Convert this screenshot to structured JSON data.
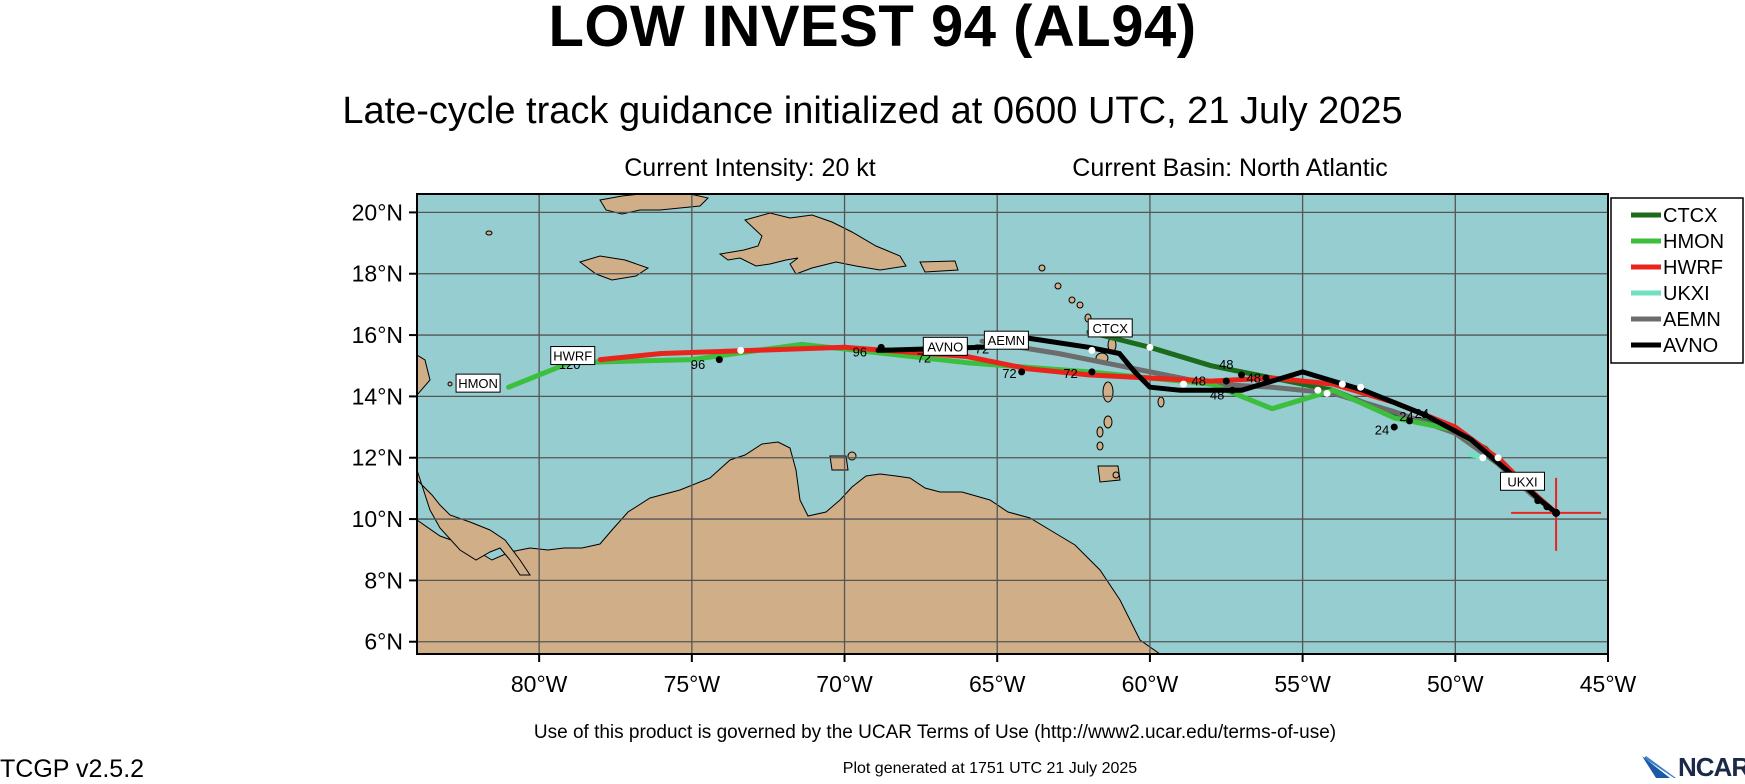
{
  "title": "LOW INVEST 94 (AL94)",
  "subtitle": "Late-cycle track guidance initialized at 0600 UTC, 21 July 2025",
  "current_intensity": "Current Intensity: 20 kt",
  "current_basin": "Current Basin: North Atlantic",
  "terms": "Use of this product is governed by the UCAR Terms of Use (http://www2.ucar.edu/terms-of-use)",
  "version": "TCGP v2.5.2",
  "generated": "Plot generated at 1751 UTC   21 July 2025",
  "logo_text": "NCAR",
  "colors": {
    "ocean": "#96cdd0",
    "land": "#cfae88",
    "CTCX": "#1c6b1c",
    "HMON": "#3cbf3c",
    "HWRF": "#e8241c",
    "UKXI": "#6fe0c0",
    "AEMN": "#6c6c6c",
    "AVNO": "#000000"
  },
  "map": {
    "lon_range": [
      -84,
      -45
    ],
    "lat_range": [
      5.6,
      20.6
    ],
    "lon_ticks": [
      "80°W",
      "75°W",
      "70°W",
      "65°W",
      "60°W",
      "55°W",
      "50°W",
      "45°W"
    ],
    "lat_ticks": [
      "20°N",
      "18°N",
      "16°N",
      "14°N",
      "12°N",
      "10°N",
      "8°N",
      "6°N"
    ],
    "current_position": {
      "lon": -46.7,
      "lat": 10.2
    }
  },
  "legend": [
    "CTCX",
    "HMON",
    "HWRF",
    "UKXI",
    "AEMN",
    "AVNO"
  ],
  "tracks": [
    {
      "model": "CTCX",
      "points": [
        [
          -46.7,
          10.2
        ],
        [
          -47.3,
          10.7
        ],
        [
          -48,
          11.2
        ],
        [
          -49,
          12.3
        ],
        [
          -50,
          12.8
        ],
        [
          -51,
          13.2
        ],
        [
          -52,
          13.4
        ],
        [
          -54,
          14.2
        ],
        [
          -56,
          14.6
        ],
        [
          -58,
          15
        ],
        [
          -60,
          15.6
        ],
        [
          -62,
          16.1
        ]
      ],
      "labels": []
    },
    {
      "model": "HMON",
      "points": [
        [
          -46.7,
          10.2
        ],
        [
          -47.5,
          10.9
        ],
        [
          -48.5,
          11.9
        ],
        [
          -50,
          12.9
        ],
        [
          -52,
          13.3
        ],
        [
          -54,
          14.2
        ],
        [
          -56,
          13.6
        ],
        [
          -58,
          14.4
        ],
        [
          -62,
          14.8
        ],
        [
          -66,
          15.1
        ],
        [
          -71.4,
          15.7
        ],
        [
          -75,
          15.2
        ],
        [
          -79,
          15.1
        ],
        [
          -81,
          14.3
        ]
      ],
      "labels": []
    },
    {
      "model": "HWRF",
      "points": [
        [
          -46.7,
          10.2
        ],
        [
          -47.5,
          10.9
        ],
        [
          -48.5,
          11.9
        ],
        [
          -50,
          13
        ],
        [
          -52,
          13.8
        ],
        [
          -54,
          14.4
        ],
        [
          -56,
          14.6
        ],
        [
          -58,
          14.5
        ],
        [
          -60,
          14.6
        ],
        [
          -62,
          14.7
        ],
        [
          -64,
          14.9
        ],
        [
          -66,
          15.3
        ],
        [
          -70,
          15.6
        ],
        [
          -73,
          15.5
        ],
        [
          -76,
          15.4
        ],
        [
          -78,
          15.2
        ]
      ],
      "labels": []
    },
    {
      "model": "UKXI",
      "points": [
        [
          -47.5,
          10.9
        ],
        [
          -48.5,
          11.9
        ],
        [
          -49.5,
          12.1
        ]
      ],
      "labels": []
    },
    {
      "model": "AEMN",
      "points": [
        [
          -46.7,
          10.2
        ],
        [
          -47.5,
          10.8
        ],
        [
          -48.6,
          11.8
        ],
        [
          -50,
          12.8
        ],
        [
          -52,
          13.5
        ],
        [
          -54,
          14.1
        ],
        [
          -56,
          14.3
        ],
        [
          -58,
          14.4
        ],
        [
          -61,
          15
        ],
        [
          -63,
          15.4
        ],
        [
          -65.5,
          15.8
        ]
      ],
      "labels": []
    },
    {
      "model": "AVNO",
      "points": [
        [
          -46.7,
          10.2
        ],
        [
          -47.2,
          10.6
        ],
        [
          -48.2,
          11.5
        ],
        [
          -49.5,
          12.6
        ],
        [
          -51,
          13.4
        ],
        [
          -53,
          14.2
        ],
        [
          -55,
          14.8
        ],
        [
          -57,
          14.2
        ],
        [
          -59,
          14.2
        ],
        [
          -60,
          14.3
        ],
        [
          -60.5,
          14.8
        ],
        [
          -61,
          15.4
        ],
        [
          -62,
          15.6
        ],
        [
          -64,
          15.9
        ],
        [
          -65.5,
          15.6
        ],
        [
          -68.9,
          15.5
        ]
      ],
      "labels": []
    }
  ],
  "track_dots": [
    [
      -46.7,
      10.2
    ],
    [
      -47,
      10.4
    ],
    [
      -47.3,
      10.6
    ],
    [
      -51,
      13.4
    ],
    [
      -52,
      13
    ],
    [
      -51.5,
      13.2
    ],
    [
      -56.2,
      14.6
    ],
    [
      -57,
      14.7
    ],
    [
      -57.5,
      14.5
    ],
    [
      -57.3,
      14.2
    ],
    [
      -64.2,
      14.8
    ],
    [
      -61.9,
      14.8
    ],
    [
      -68.8,
      15.6
    ],
    [
      -74.1,
      15.2
    ]
  ],
  "track_white_dots": [
    [
      -48.6,
      12
    ],
    [
      -49.1,
      12
    ],
    [
      -54.2,
      14.1
    ],
    [
      -54.5,
      14.2
    ],
    [
      -53.1,
      14.3
    ],
    [
      -53.7,
      14.4
    ],
    [
      -58.9,
      14.4
    ],
    [
      -61.9,
      15.5
    ],
    [
      -60,
      15.6
    ],
    [
      -73.4,
      15.5
    ]
  ],
  "forecast_hour_labels": [
    {
      "text": "24",
      "lon": -52.4,
      "lat": 12.75
    },
    {
      "text": "24",
      "lon": -51.6,
      "lat": 13.2
    },
    {
      "text": "24",
      "lon": -51.1,
      "lat": 13.3
    },
    {
      "text": "48",
      "lon": -57.5,
      "lat": 14.9
    },
    {
      "text": "48",
      "lon": -58.4,
      "lat": 14.35
    },
    {
      "text": "48",
      "lon": -56.6,
      "lat": 14.45
    },
    {
      "text": "48",
      "lon": -57.8,
      "lat": 13.9
    },
    {
      "text": "72",
      "lon": -64.6,
      "lat": 14.6
    },
    {
      "text": "72",
      "lon": -62.6,
      "lat": 14.6
    },
    {
      "text": "72",
      "lon": -67.4,
      "lat": 15.1
    },
    {
      "text": "72",
      "lon": -65.5,
      "lat": 15.4
    },
    {
      "text": "96",
      "lon": -69.5,
      "lat": 15.3
    },
    {
      "text": "96",
      "lon": -74.8,
      "lat": 14.9
    },
    {
      "text": "120",
      "lon": -79,
      "lat": 14.9
    }
  ],
  "model_tags": [
    {
      "text": "HMON",
      "lon": -82,
      "lat": 14.4
    },
    {
      "text": "HWRF",
      "lon": -78.9,
      "lat": 15.3
    },
    {
      "text": "AVNO",
      "lon": -66.7,
      "lat": 15.6
    },
    {
      "text": "AEMN",
      "lon": -64.7,
      "lat": 15.8
    },
    {
      "text": "CTCX",
      "lon": -61.3,
      "lat": 16.2
    },
    {
      "text": "UKXI",
      "lon": -47.8,
      "lat": 11.2
    }
  ]
}
